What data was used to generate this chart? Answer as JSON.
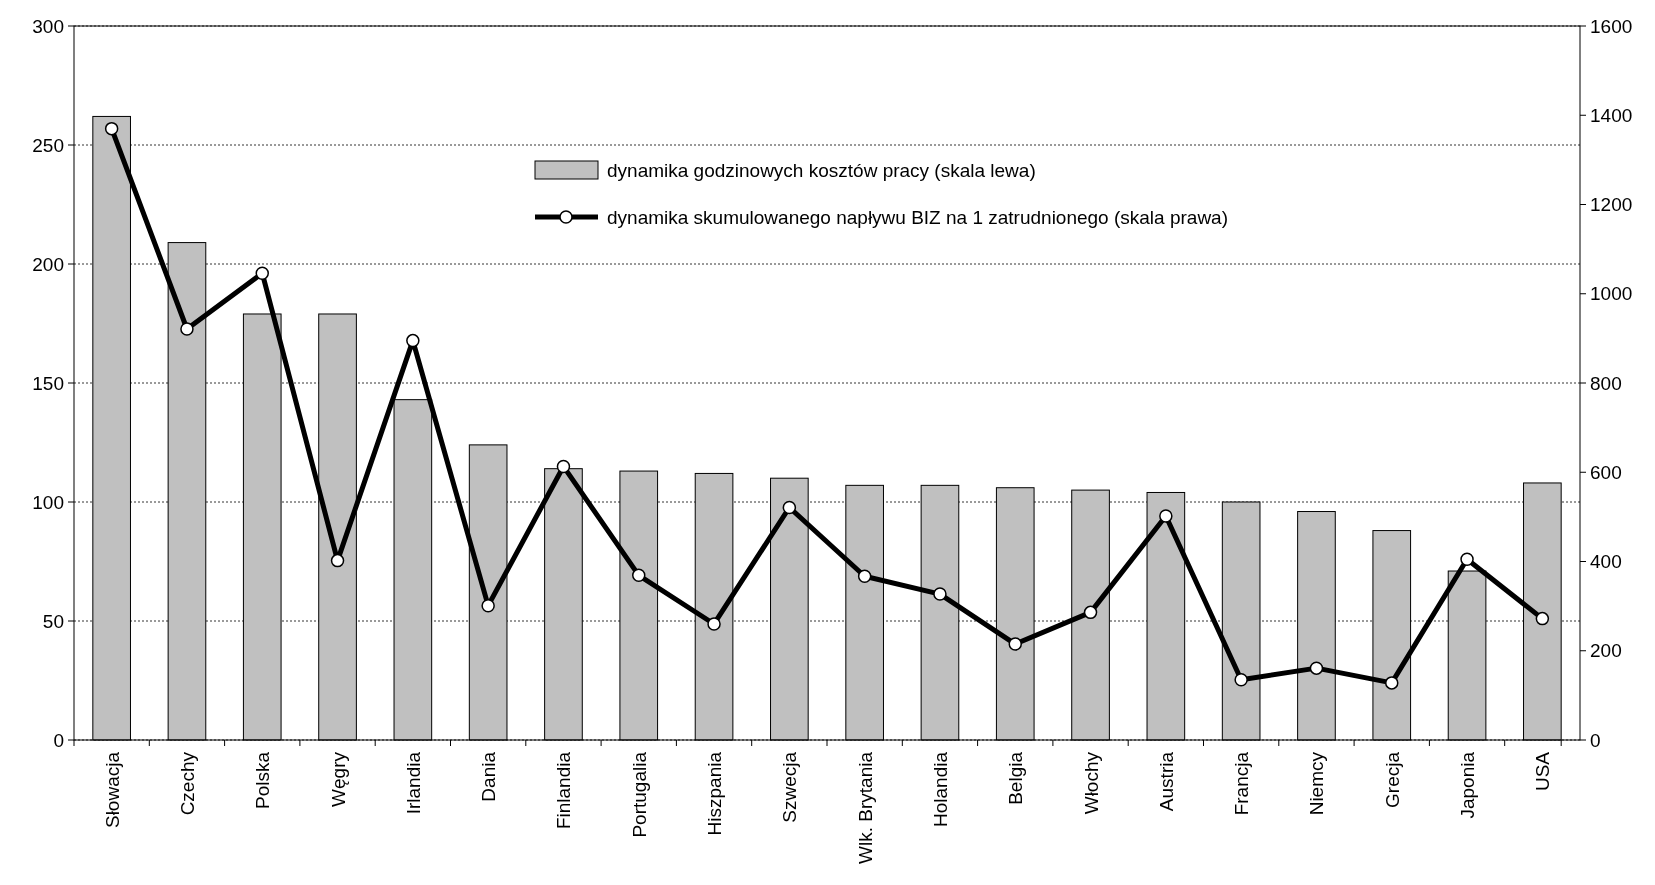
{
  "chart_data": {
    "type": "bar",
    "categories": [
      "Słowacja",
      "Czechy",
      "Polska",
      "Węgry",
      "Irlandia",
      "Dania",
      "Finlandia",
      "Portugalia",
      "Hiszpania",
      "Szwecja",
      "Wlk. Brytania",
      "Holandia",
      "Belgia",
      "Włochy",
      "Austria",
      "Francja",
      "Niemcy",
      "Grecja",
      "Japonia",
      "USA"
    ],
    "series": [
      {
        "name": "dynamika godzinowych kosztów pracy (skala lewa)",
        "color": "#c0c0c0",
        "values": [
          262,
          209,
          179,
          179,
          143,
          124,
          114,
          113,
          112,
          110,
          107,
          107,
          106,
          105,
          104,
          100,
          96,
          88,
          71,
          108
        ]
      },
      {
        "name": "dynamika skumulowanego napływu BIZ na 1 zatrudnionego (skala prawa)",
        "type": "line",
        "axis": "y2",
        "color": "#000000",
        "marker": "circle",
        "values": [
          1370,
          921,
          1046,
          402,
          895,
          301,
          613,
          369,
          260,
          521,
          367,
          327,
          215,
          286,
          502,
          135,
          161,
          128,
          405,
          272
        ]
      }
    ],
    "ylim": [
      0,
      300
    ],
    "yticks": [
      0,
      50,
      100,
      150,
      200,
      250,
      300
    ],
    "y2lim": [
      0,
      1600
    ],
    "y2ticks": [
      0,
      200,
      400,
      600,
      800,
      1000,
      1200,
      1400,
      1600
    ],
    "grid": "y",
    "legend": "top"
  }
}
